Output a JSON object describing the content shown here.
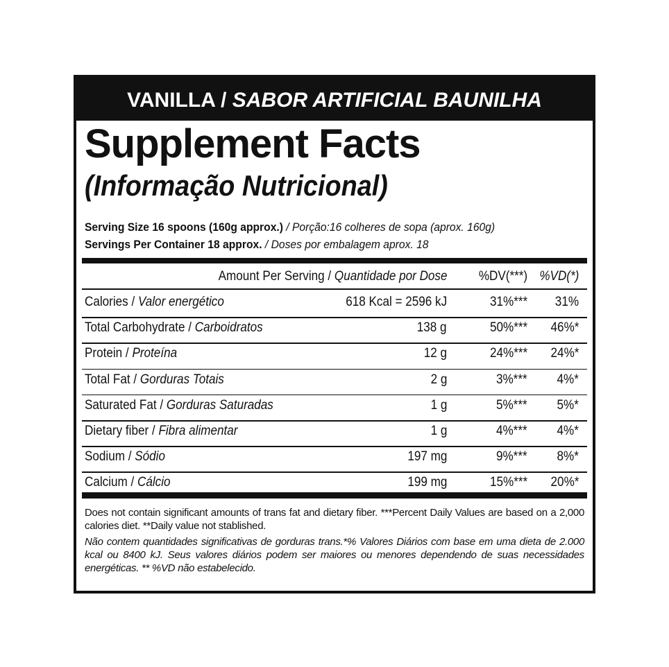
{
  "header": {
    "flavor_en": "VANILLA / ",
    "flavor_pt": "SABOR ARTIFICIAL BAUNILHA"
  },
  "title": "Supplement Facts",
  "subtitle": "(Informação Nutricional)",
  "serving": [
    {
      "en": "Serving Size 16 spoons (160g approx.)",
      "pt": " / Porção:16 colheres de sopa (aprox. 160g)"
    },
    {
      "en": "Servings Per Container 18 approx.",
      "pt": " / Doses por embalagem aprox. 18"
    }
  ],
  "table": {
    "columns": {
      "amount_en": "Amount Per Serving / ",
      "amount_pt": "Quantidade por Dose",
      "dv": "%DV(***)",
      "vd": "%VD(*)"
    },
    "rows": [
      {
        "en": "Calories / ",
        "pt": "Valor energético",
        "amount": "618 Kcal = 2596 kJ",
        "dv": "31%***",
        "vd": "31%"
      },
      {
        "en": "Total Carbohydrate / ",
        "pt": "Carboidratos",
        "amount": "138 g",
        "dv": "50%***",
        "vd": "46%*"
      },
      {
        "en": "Protein / ",
        "pt": "Proteína",
        "amount": "12 g",
        "dv": "24%***",
        "vd": "24%*"
      },
      {
        "en": "Total Fat / ",
        "pt": "Gorduras Totais",
        "amount": "2 g",
        "dv": "3%***",
        "vd": "4%*"
      },
      {
        "en": "Saturated Fat / ",
        "pt": "Gorduras Saturadas",
        "amount": "1 g",
        "dv": "5%***",
        "vd": "5%*"
      },
      {
        "en": "Dietary fiber / ",
        "pt": "Fibra alimentar",
        "amount": "1 g",
        "dv": "4%***",
        "vd": "4%*"
      },
      {
        "en": "Sodium / ",
        "pt": "Sódio",
        "amount": "197 mg",
        "dv": "9%***",
        "vd": "8%*"
      },
      {
        "en": "Calcium / ",
        "pt": "Cálcio",
        "amount": "199 mg",
        "dv": "15%***",
        "vd": "20%*"
      }
    ]
  },
  "footnote": {
    "en": "Does not contain significant amounts of trans fat and dietary fiber. ***Percent Daily Values are based on a 2,000 calories diet. **Daily value not stablished.",
    "pt": "Não contem quantidades significativas de gorduras trans.*% Valores Diários com base em uma dieta de 2.000 kcal ou 8400 kJ. Seus valores diários podem ser maiores ou menores dependendo de suas necessidades energéticas. ** %VD não estabelecido."
  }
}
